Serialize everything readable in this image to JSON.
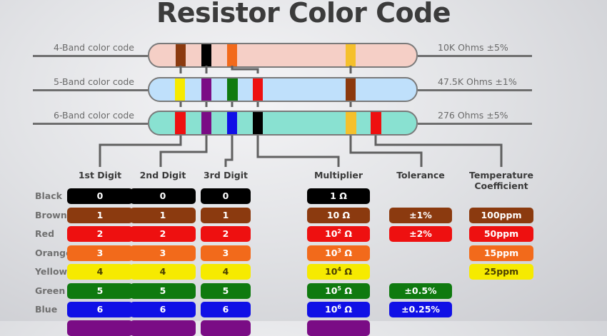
{
  "title": "Resistor Color Code",
  "resistors": [
    {
      "label": "4-Band color code",
      "value": "10K Ohms ±5%",
      "body_color": "#f5cfc6",
      "bands": [
        "#8b3a0f",
        "#000000",
        "#f26a1b",
        "#f5c02c"
      ]
    },
    {
      "label": "5-Band color code",
      "value": "47.5K Ohms ±1%",
      "body_color": "#bfe0fb",
      "bands": [
        "#f6ea00",
        "#7a0c85",
        "#0f7a0f",
        "#ee1010",
        "#8b3a0f"
      ]
    },
    {
      "label": "6-Band color code",
      "value": "276 Ohms ±5%",
      "body_color": "#89e1d1",
      "bands": [
        "#ee1010",
        "#7a0c85",
        "#1010e6",
        "#000000",
        "#f5c02c",
        "#ee1010"
      ]
    }
  ],
  "columns": [
    "1st Digit",
    "2nd Digit",
    "3rd Digit",
    "Multiplier",
    "Tolerance",
    "Temperature Coefficient"
  ],
  "rows": [
    {
      "name": "Black",
      "color": "#000000",
      "text_color": "#ffffff",
      "d1": "0",
      "d2": "0",
      "d3": "0",
      "mult_base": "1 Ω",
      "mult_exp": "",
      "tol": "",
      "temp": ""
    },
    {
      "name": "Brown",
      "color": "#8b3a0f",
      "text_color": "#ffffff",
      "d1": "1",
      "d2": "1",
      "d3": "1",
      "mult_base": "10 Ω",
      "mult_exp": "",
      "tol": "±1%",
      "temp": "100ppm"
    },
    {
      "name": "Red",
      "color": "#ee1010",
      "text_color": "#ffffff",
      "d1": "2",
      "d2": "2",
      "d3": "2",
      "mult_base": "10",
      "mult_exp": "2",
      "mult_unit": " Ω",
      "tol": "±2%",
      "temp": "50ppm"
    },
    {
      "name": "Orange",
      "color": "#f26a1b",
      "text_color": "#ffffff",
      "d1": "3",
      "d2": "3",
      "d3": "3",
      "mult_base": "10",
      "mult_exp": "3",
      "mult_unit": " Ω",
      "tol": "",
      "temp": "15ppm"
    },
    {
      "name": "Yellow",
      "color": "#f6ea00",
      "text_color": "#4a3f00",
      "d1": "4",
      "d2": "4",
      "d3": "4",
      "mult_base": "10",
      "mult_exp": "4",
      "mult_unit": " Ω",
      "tol": "",
      "temp": "25ppm"
    },
    {
      "name": "Green",
      "color": "#0f7a0f",
      "text_color": "#ffffff",
      "d1": "5",
      "d2": "5",
      "d3": "5",
      "mult_base": "10",
      "mult_exp": "5",
      "mult_unit": " Ω",
      "tol": "±0.5%",
      "temp": ""
    },
    {
      "name": "Blue",
      "color": "#1010e6",
      "text_color": "#ffffff",
      "d1": "6",
      "d2": "6",
      "d3": "6",
      "mult_base": "10",
      "mult_exp": "6",
      "mult_unit": " Ω",
      "tol": "±0.25%",
      "temp": ""
    },
    {
      "name": "",
      "color": "#7a0c85",
      "text_color": "#ffffff",
      "d1": "",
      "d2": "",
      "d3": "",
      "mult_base": "",
      "mult_exp": "",
      "tol": "",
      "temp": ""
    }
  ]
}
